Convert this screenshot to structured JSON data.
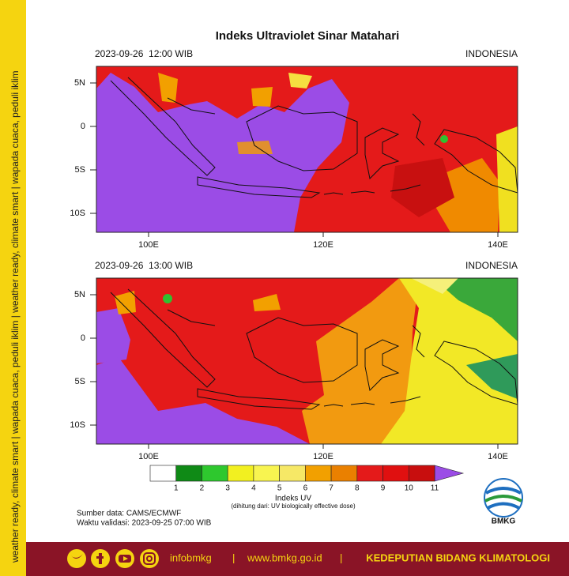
{
  "side_text": "weather ready, climate smart | wapada cuaca, peduli iklim | weather ready, climate smart | wapada cuaca, peduli iklim",
  "title": "Indeks Ultraviolet Sinar Matahari",
  "panels": [
    {
      "timestamp": "2023-09-26  12:00 WIB",
      "region": "INDONESIA"
    },
    {
      "timestamp": "2023-09-26  13:00 WIB",
      "region": "INDONESIA"
    }
  ],
  "lat_labels": [
    "5N",
    "0",
    "5S",
    "10S"
  ],
  "lon_labels": [
    "100E",
    "120E",
    "140E"
  ],
  "colorbar": {
    "labels": [
      1,
      2,
      3,
      4,
      5,
      6,
      7,
      8,
      9,
      10,
      11
    ],
    "title": "Indeks UV",
    "note": "(dihitung dari: UV biologically effective dose)"
  },
  "source": "Sumber data: CAMS/ECMWF",
  "validity": "Waktu validasi: 2023-09-25 07:00 WIB",
  "logo": "BMKG",
  "footer": {
    "handle": "infobmkg",
    "separator": "|",
    "website": "www.bmkg.go.id",
    "department": "KEDEPUTIAN BIDANG KLIMATOLOGI"
  }
}
